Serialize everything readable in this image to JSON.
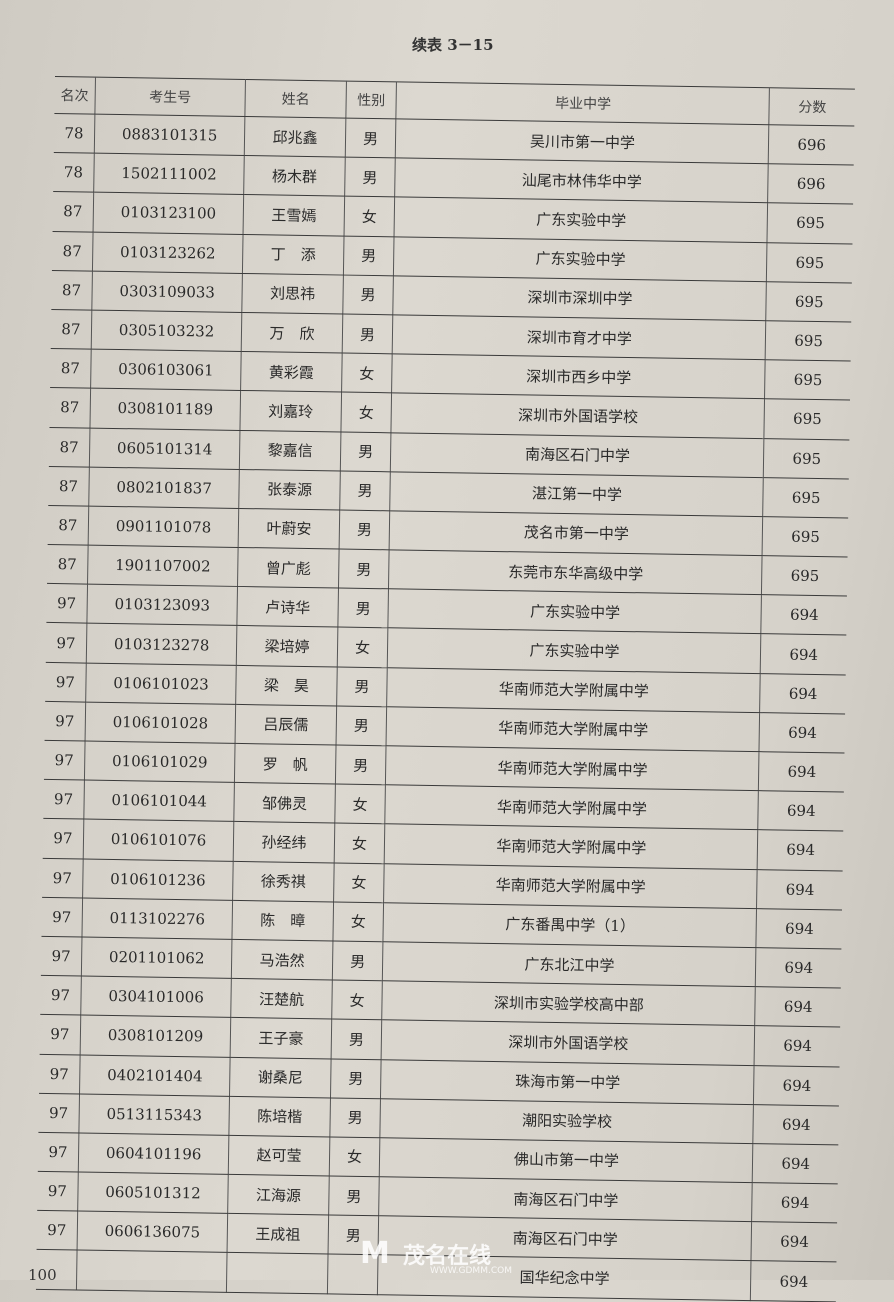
{
  "caption": "续表 3－15",
  "headers": [
    "名次",
    "考生号",
    "姓名",
    "性别",
    "毕业中学",
    "分数"
  ],
  "rows": [
    [
      "78",
      "0883101315",
      "邱兆鑫",
      "男",
      "吴川市第一中学",
      "696"
    ],
    [
      "78",
      "1502111002",
      "杨木群",
      "男",
      "汕尾市林伟华中学",
      "696"
    ],
    [
      "87",
      "0103123100",
      "王雪嫣",
      "女",
      "广东实验中学",
      "695"
    ],
    [
      "87",
      "0103123262",
      "丁　添",
      "男",
      "广东实验中学",
      "695"
    ],
    [
      "87",
      "0303109033",
      "刘思祎",
      "男",
      "深圳市深圳中学",
      "695"
    ],
    [
      "87",
      "0305103232",
      "万　欣",
      "男",
      "深圳市育才中学",
      "695"
    ],
    [
      "87",
      "0306103061",
      "黄彩霞",
      "女",
      "深圳市西乡中学",
      "695"
    ],
    [
      "87",
      "0308101189",
      "刘嘉玲",
      "女",
      "深圳市外国语学校",
      "695"
    ],
    [
      "87",
      "0605101314",
      "黎嘉信",
      "男",
      "南海区石门中学",
      "695"
    ],
    [
      "87",
      "0802101837",
      "张泰源",
      "男",
      "湛江第一中学",
      "695"
    ],
    [
      "87",
      "0901101078",
      "叶蔚安",
      "男",
      "茂名市第一中学",
      "695"
    ],
    [
      "87",
      "1901107002",
      "曾广彪",
      "男",
      "东莞市东华高级中学",
      "695"
    ],
    [
      "97",
      "0103123093",
      "卢诗华",
      "男",
      "广东实验中学",
      "694"
    ],
    [
      "97",
      "0103123278",
      "梁培婷",
      "女",
      "广东实验中学",
      "694"
    ],
    [
      "97",
      "0106101023",
      "梁　昊",
      "男",
      "华南师范大学附属中学",
      "694"
    ],
    [
      "97",
      "0106101028",
      "吕辰儒",
      "男",
      "华南师范大学附属中学",
      "694"
    ],
    [
      "97",
      "0106101029",
      "罗　帆",
      "男",
      "华南师范大学附属中学",
      "694"
    ],
    [
      "97",
      "0106101044",
      "邹佛灵",
      "女",
      "华南师范大学附属中学",
      "694"
    ],
    [
      "97",
      "0106101076",
      "孙经纬",
      "女",
      "华南师范大学附属中学",
      "694"
    ],
    [
      "97",
      "0106101236",
      "徐秀祺",
      "女",
      "华南师范大学附属中学",
      "694"
    ],
    [
      "97",
      "0113102276",
      "陈　暲",
      "女",
      "广东番禺中学（1）",
      "694"
    ],
    [
      "97",
      "0201101062",
      "马浩然",
      "男",
      "广东北江中学",
      "694"
    ],
    [
      "97",
      "0304101006",
      "汪楚航",
      "女",
      "深圳市实验学校高中部",
      "694"
    ],
    [
      "97",
      "0308101209",
      "王子豪",
      "男",
      "深圳市外国语学校",
      "694"
    ],
    [
      "97",
      "0402101404",
      "谢桑尼",
      "男",
      "珠海市第一中学",
      "694"
    ],
    [
      "97",
      "0513115343",
      "陈培楷",
      "男",
      "潮阳实验学校",
      "694"
    ],
    [
      "97",
      "0604101196",
      "赵可莹",
      "女",
      "佛山市第一中学",
      "694"
    ],
    [
      "97",
      "0605101312",
      "江海源",
      "男",
      "南海区石门中学",
      "694"
    ],
    [
      "97",
      "0606136075",
      "王成祖",
      "男",
      "南海区石门中学",
      "694"
    ],
    [
      "",
      "",
      "",
      "",
      "国华纪念中学",
      "694"
    ]
  ],
  "page_number": "100",
  "watermark": {
    "name": "茂名在线",
    "url": "WWW.GDMM.COM"
  }
}
